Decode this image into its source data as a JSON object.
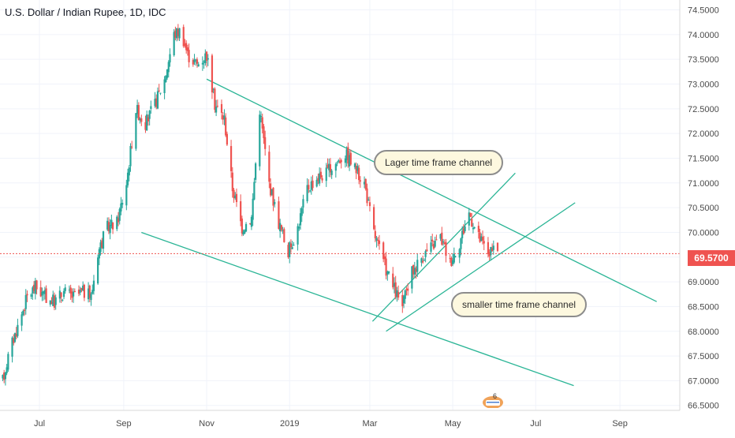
{
  "title": "U.S. Dollar / Indian Rupee, 1D, IDC",
  "last_price_label": "69.5700",
  "annotations": {
    "large_channel": "Lager time frame channel",
    "small_channel": "smaller time frame channel"
  },
  "badge_count": "6",
  "colors": {
    "up": "#26a69a",
    "down": "#ef5350",
    "channel": "#2bb596",
    "price_line": "#ef5350",
    "callout_bg": "#fdf8df"
  },
  "chart_data": {
    "type": "candlestick",
    "title": "U.S. Dollar / Indian Rupee, 1D, IDC",
    "x_ticks": [
      "Jul",
      "Sep",
      "Nov",
      "2019",
      "Mar",
      "May",
      "Jul",
      "Sep"
    ],
    "x_tick_dates": [
      "2018-07-01",
      "2018-09-01",
      "2018-11-01",
      "2019-01-01",
      "2019-03-01",
      "2019-05-01",
      "2019-07-01",
      "2019-09-01"
    ],
    "xlim": [
      "2018-06-02",
      "2019-10-15"
    ],
    "ylim": [
      66.4,
      74.7
    ],
    "y_ticks": [
      "66.5000",
      "67.0000",
      "67.5000",
      "68.0000",
      "68.5000",
      "69.0000",
      "69.5000",
      "70.0000",
      "70.5000",
      "71.0000",
      "71.5000",
      "72.0000",
      "72.5000",
      "73.0000",
      "73.5000",
      "74.0000",
      "74.5000"
    ],
    "y_tick_values": [
      66.5,
      67.0,
      67.5,
      68.0,
      68.5,
      69.0,
      69.5,
      70.0,
      70.5,
      71.0,
      71.5,
      72.0,
      72.5,
      73.0,
      73.5,
      74.0,
      74.5
    ],
    "last_price": 69.57,
    "grid": true,
    "closes": [
      [
        "2018-06-04",
        67.0
      ],
      [
        "2018-06-09",
        67.6
      ],
      [
        "2018-06-15",
        68.1
      ],
      [
        "2018-06-22",
        68.7
      ],
      [
        "2018-06-28",
        68.9
      ],
      [
        "2018-07-05",
        68.7
      ],
      [
        "2018-07-12",
        68.6
      ],
      [
        "2018-07-19",
        68.8
      ],
      [
        "2018-07-26",
        68.7
      ],
      [
        "2018-08-02",
        68.8
      ],
      [
        "2018-08-08",
        68.7
      ],
      [
        "2018-08-13",
        69.6
      ],
      [
        "2018-08-20",
        70.1
      ],
      [
        "2018-08-27",
        70.2
      ],
      [
        "2018-09-03",
        71.0
      ],
      [
        "2018-09-10",
        72.5
      ],
      [
        "2018-09-17",
        72.2
      ],
      [
        "2018-09-24",
        72.6
      ],
      [
        "2018-10-01",
        73.1
      ],
      [
        "2018-10-08",
        74.0
      ],
      [
        "2018-10-13",
        74.1
      ],
      [
        "2018-10-18",
        73.6
      ],
      [
        "2018-10-25",
        73.4
      ],
      [
        "2018-11-01",
        73.6
      ],
      [
        "2018-11-07",
        72.6
      ],
      [
        "2018-11-14",
        72.3
      ],
      [
        "2018-11-20",
        70.9
      ],
      [
        "2018-11-27",
        70.1
      ],
      [
        "2018-12-04",
        70.3
      ],
      [
        "2018-12-10",
        72.5
      ],
      [
        "2018-12-17",
        71.0
      ],
      [
        "2018-12-24",
        70.2
      ],
      [
        "2018-12-31",
        69.6
      ],
      [
        "2019-01-07",
        70.1
      ],
      [
        "2019-01-14",
        70.9
      ],
      [
        "2019-01-21",
        71.1
      ],
      [
        "2019-01-28",
        71.2
      ],
      [
        "2019-02-04",
        71.4
      ],
      [
        "2019-02-11",
        71.6
      ],
      [
        "2019-02-18",
        71.3
      ],
      [
        "2019-02-25",
        71.0
      ],
      [
        "2019-03-04",
        70.0
      ],
      [
        "2019-03-11",
        69.4
      ],
      [
        "2019-03-18",
        68.9
      ],
      [
        "2019-03-25",
        68.5
      ],
      [
        "2019-04-01",
        69.2
      ],
      [
        "2019-04-08",
        69.5
      ],
      [
        "2019-04-15",
        69.7
      ],
      [
        "2019-04-22",
        69.9
      ],
      [
        "2019-04-29",
        69.4
      ],
      [
        "2019-05-06",
        69.8
      ],
      [
        "2019-05-13",
        70.4
      ],
      [
        "2019-05-20",
        69.9
      ],
      [
        "2019-05-27",
        69.6
      ],
      [
        "2019-06-03",
        69.6
      ]
    ],
    "channel_lines": [
      {
        "name": "",
        "from": [
          "2018-11-01",
          73.1
        ],
        "to": [
          "2019-09-28",
          68.6
        ]
      },
      {
        "name": "",
        "from": [
          "2018-09-14",
          70.0
        ],
        "to": [
          "2019-07-29",
          66.9
        ]
      },
      {
        "name": "",
        "from": [
          "2019-03-03",
          68.2
        ],
        "to": [
          "2019-06-16",
          71.2
        ]
      },
      {
        "name": "",
        "from": [
          "2019-03-13",
          68.0
        ],
        "to": [
          "2019-07-30",
          70.6
        ]
      }
    ]
  }
}
